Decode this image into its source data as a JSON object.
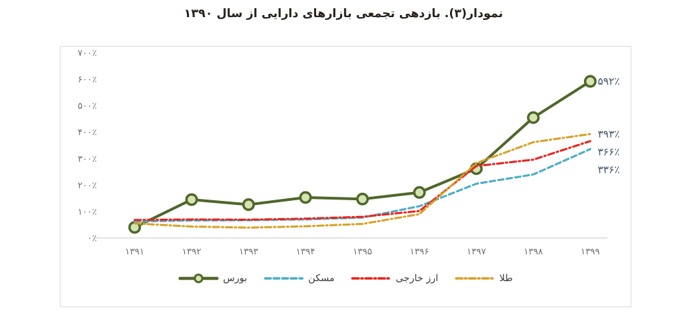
{
  "title": "نمودار(۳). بازدهی تجمعی بازارهای دارایی از سال ۱۳۹۰",
  "colors": {
    "stock_line": "#4f672b",
    "stock_marker_fill": "#d5e4b0",
    "housing": "#4bacc6",
    "currency": "#e8231d",
    "gold": "#d7a128",
    "axis_text": "#6e6e6e",
    "axis_line": "#d9d9d9",
    "end_label_text": "#44546a",
    "box_border": "#d9d9d9",
    "title_text": "#27211a",
    "legend_text": "#3b3b3b"
  },
  "chart_data": {
    "type": "line",
    "title": "نمودار(۳). بازدهی تجمعی بازارهای دارایی از سال ۱۳۹۰",
    "x_tick_labels": [
      "۱۳۹۱",
      "۱۳۹۲",
      "۱۳۹۳",
      "۱۳۹۴",
      "۱۳۹۵",
      "۱۳۹۶",
      "۱۳۹۷",
      "۱۳۹۸",
      "۱۳۹۹"
    ],
    "x_values": [
      1391,
      1392,
      1393,
      1394,
      1395,
      1396,
      1397,
      1398,
      1399
    ],
    "y_axis": {
      "min": 0,
      "max": 700,
      "tick_step": 100,
      "tick_values_top_to_bottom": [
        700,
        600,
        500,
        400,
        300,
        200,
        100,
        0
      ],
      "tick_labels_top_to_bottom": [
        "۷۰۰٪",
        "۶۰۰٪",
        "۵۰۰٪",
        "۴۰۰٪",
        "۳۰۰٪",
        "۲۰۰٪",
        "۱۰۰٪",
        "۰٪"
      ]
    },
    "grid": "off",
    "legend_position": "bottom",
    "series": [
      {
        "name": "بورس",
        "semantic": "stock-exchange",
        "style": "solid-circle",
        "color": "#4f672b",
        "marker_fill": "#d5e4b0",
        "values": [
          40,
          145,
          126,
          153,
          147,
          172,
          262,
          455,
          592
        ],
        "end_label": "۵۹۲٪",
        "end_value": 592
      },
      {
        "name": "مسکن",
        "semantic": "housing",
        "style": "dashed",
        "color": "#4bacc6",
        "values": [
          62,
          66,
          67,
          70,
          77,
          120,
          205,
          240,
          336
        ],
        "end_label": "۳۳۶٪",
        "end_value": 336
      },
      {
        "name": "ارز خارجی",
        "semantic": "foreign-currency",
        "style": "dash-dot",
        "color": "#e8231d",
        "values": [
          68,
          70,
          69,
          73,
          80,
          102,
          272,
          296,
          366
        ],
        "end_label": "۳۶۶٪",
        "end_value": 366
      },
      {
        "name": "طلا",
        "semantic": "gold",
        "style": "dash-dot",
        "color": "#d7a128",
        "values": [
          55,
          43,
          39,
          44,
          53,
          90,
          283,
          362,
          393
        ],
        "end_label": "۳۹۳٪",
        "end_value": 393
      }
    ],
    "legend_order_left_to_right": [
      "بورس",
      "مسکن",
      "ارز خارجی",
      "طلا"
    ]
  }
}
